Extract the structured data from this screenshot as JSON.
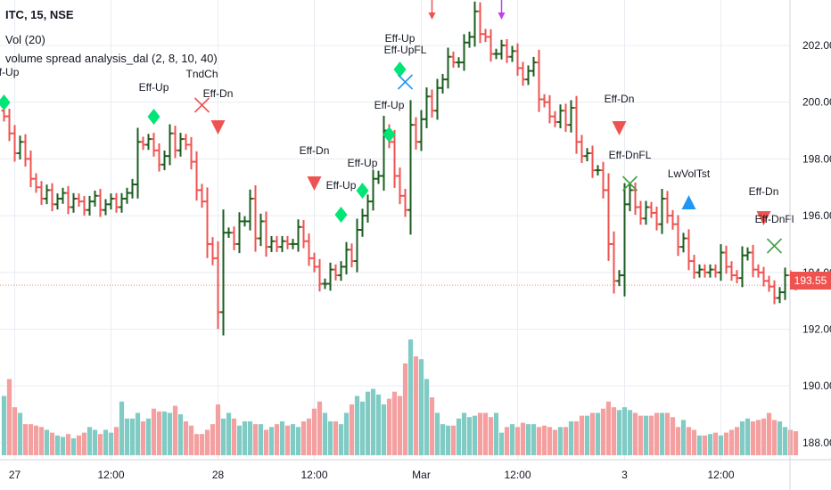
{
  "header": {
    "symbol_line": "ITC, 15, NSE",
    "vol_line": "Vol (20)",
    "indicator_line": "volume spread analysis_dal  (2, 8, 10, 40)"
  },
  "last_price": "193.55",
  "colors": {
    "up": "#1b5e20",
    "down": "#ef5350",
    "vol_up": "#80cbc4",
    "vol_down": "#f4a0a0",
    "diamond": "#00e676",
    "grid": "#e9ecf2",
    "price_tag": "#ef5350",
    "blue_triangle": "#2196f3",
    "marker_magenta": "#c040f0"
  },
  "chart_data": {
    "type": "ohlc",
    "ylim": [
      187.4,
      203.6
    ],
    "yticks": [
      "202.00",
      "200.00",
      "198.00",
      "196.00",
      "194.00",
      "192.00",
      "190.00",
      "188.00"
    ],
    "ytick_values": [
      202,
      200,
      198,
      196,
      194,
      192,
      190,
      188
    ],
    "xtick_labels": [
      {
        "label": "27",
        "bar": 2
      },
      {
        "label": "12:00",
        "bar": 20
      },
      {
        "label": "28",
        "bar": 40
      },
      {
        "label": "12:00",
        "bar": 58
      },
      {
        "label": "Mar",
        "bar": 78
      },
      {
        "label": "12:00",
        "bar": 96
      },
      {
        "label": "3",
        "bar": 116
      },
      {
        "label": "12:00",
        "bar": 134
      }
    ],
    "closes": [
      199.5,
      198.9,
      198.2,
      198.6,
      198.0,
      197.3,
      197.0,
      196.6,
      196.9,
      196.4,
      196.6,
      196.8,
      196.3,
      196.6,
      196.5,
      196.2,
      196.5,
      196.7,
      196.2,
      196.4,
      196.6,
      196.3,
      196.6,
      196.8,
      197.1,
      198.6,
      198.5,
      198.7,
      198.3,
      197.8,
      198.1,
      198.9,
      198.3,
      198.7,
      198.5,
      197.9,
      196.9,
      196.5,
      195.0,
      194.5,
      192.6,
      195.4,
      195.4,
      195.0,
      195.8,
      195.8,
      196.6,
      195.2,
      195.8,
      194.9,
      195.1,
      194.9,
      195.1,
      195.0,
      195.0,
      195.6,
      195.1,
      194.5,
      194.2,
      193.6,
      193.6,
      194.1,
      193.9,
      194.2,
      194.8,
      194.4,
      195.5,
      196.0,
      196.5,
      197.3,
      197.4,
      199.0,
      198.6,
      197.4,
      196.7,
      196.2,
      199.2,
      198.6,
      199.4,
      200.2,
      199.7,
      200.5,
      200.8,
      201.6,
      201.4,
      201.4,
      202.1,
      202.3,
      203.2,
      202.4,
      202.3,
      201.7,
      201.7,
      202.0,
      201.6,
      201.8,
      201.2,
      200.8,
      201.1,
      201.4,
      200.1,
      200.0,
      199.5,
      199.3,
      199.7,
      199.2,
      199.8,
      198.6,
      198.1,
      198.2,
      197.6,
      197.6,
      196.9,
      195.0,
      193.7,
      193.9,
      196.4,
      196.9,
      196.3,
      195.9,
      196.3,
      196.1,
      195.7,
      196.6,
      196.0,
      195.7,
      194.9,
      195.2,
      194.4,
      194.0,
      194.1,
      194.0,
      194.1,
      194.0,
      194.7,
      194.2,
      193.9,
      193.8,
      194.6,
      194.7,
      194.1,
      194.0,
      193.7,
      193.5,
      193.1,
      193.3,
      193.9,
      193.8,
      193.55
    ],
    "volumes": [
      420,
      540,
      340,
      300,
      220,
      220,
      210,
      200,
      180,
      160,
      140,
      130,
      150,
      120,
      140,
      160,
      200,
      180,
      150,
      180,
      160,
      200,
      380,
      260,
      260,
      300,
      240,
      260,
      330,
      310,
      310,
      300,
      350,
      290,
      240,
      210,
      150,
      150,
      180,
      220,
      360,
      260,
      300,
      260,
      210,
      240,
      240,
      220,
      220,
      180,
      200,
      220,
      240,
      210,
      220,
      200,
      240,
      260,
      330,
      380,
      300,
      240,
      240,
      220,
      300,
      360,
      420,
      380,
      450,
      470,
      430,
      360,
      400,
      450,
      420,
      650,
      820,
      700,
      680,
      540,
      410,
      300,
      220,
      210,
      210,
      260,
      300,
      270,
      280,
      300,
      300,
      270,
      300,
      160,
      200,
      220,
      200,
      230,
      220,
      220,
      200,
      210,
      200,
      180,
      200,
      200,
      240,
      240,
      280,
      280,
      300,
      300,
      330,
      380,
      340,
      320,
      340,
      320,
      300,
      280,
      280,
      280,
      300,
      300,
      300,
      270,
      200,
      250,
      200,
      180,
      140,
      140,
      150,
      160,
      140,
      160,
      180,
      200,
      240,
      260,
      240,
      250,
      260,
      300,
      250,
      240,
      200,
      180,
      170
    ]
  },
  "signals": [
    {
      "type": "label",
      "text": "Eff-Up",
      "bar": 0,
      "y": 85
    },
    {
      "type": "diamond",
      "bar": 0,
      "y": 115
    },
    {
      "type": "label",
      "text": "Eff-Up",
      "bar": 28,
      "y": 102
    },
    {
      "type": "diamond",
      "bar": 28,
      "y": 131
    },
    {
      "type": "label",
      "text": "TndCh",
      "bar": 37,
      "y": 87
    },
    {
      "type": "cross",
      "color": "#ef5350",
      "bar": 37,
      "y": 118
    },
    {
      "type": "label",
      "text": "Eff-Dn",
      "bar": 40,
      "y": 109
    },
    {
      "type": "tri-down",
      "color": "#ef5350",
      "bar": 40,
      "y": 143
    },
    {
      "type": "label",
      "text": "Eff-Dn",
      "bar": 58,
      "y": 173
    },
    {
      "type": "tri-down",
      "color": "#ef5350",
      "bar": 58,
      "y": 206
    },
    {
      "type": "label",
      "text": "Eff-Up",
      "bar": 63,
      "y": 212
    },
    {
      "type": "diamond",
      "bar": 63,
      "y": 241
    },
    {
      "type": "label",
      "text": "Eff-Up",
      "bar": 67,
      "y": 187
    },
    {
      "type": "diamond",
      "bar": 67,
      "y": 214
    },
    {
      "type": "label",
      "text": "Eff-Up",
      "bar": 72,
      "y": 122
    },
    {
      "type": "diamond",
      "bar": 72,
      "y": 151
    },
    {
      "type": "label",
      "text": "Eff-Up",
      "bar": 74,
      "y": 47
    },
    {
      "type": "label",
      "text": "Eff-UpFL",
      "bar": 75,
      "y": 60
    },
    {
      "type": "diamond",
      "bar": 74,
      "y": 78
    },
    {
      "type": "cross",
      "color": "#2196f3",
      "bar": 75,
      "y": 92
    },
    {
      "type": "arrow-down",
      "color": "#ef5350",
      "bar": 80,
      "y": 10
    },
    {
      "type": "arrow-down",
      "color": "#c040f0",
      "bar": 93,
      "y": 10
    },
    {
      "type": "label",
      "text": "Eff-Dn",
      "bar": 115,
      "y": 115
    },
    {
      "type": "tri-down",
      "color": "#ef5350",
      "bar": 115,
      "y": 144
    },
    {
      "type": "label",
      "text": "Eff-DnFL",
      "bar": 117,
      "y": 178
    },
    {
      "type": "cross",
      "color": "#43a047",
      "bar": 117,
      "y": 206
    },
    {
      "type": "label",
      "text": "LwVolTst",
      "bar": 128,
      "y": 199
    },
    {
      "type": "tri-up",
      "color": "#2196f3",
      "bar": 128,
      "y": 227
    },
    {
      "type": "label",
      "text": "Eff-Dn",
      "bar": 142,
      "y": 219
    },
    {
      "type": "tri-down",
      "color": "#ef5350",
      "bar": 142,
      "y": 245
    },
    {
      "type": "label",
      "text": "Eff-DnFl",
      "bar": 144,
      "y": 250
    },
    {
      "type": "cross",
      "color": "#43a047",
      "bar": 144,
      "y": 276
    }
  ]
}
